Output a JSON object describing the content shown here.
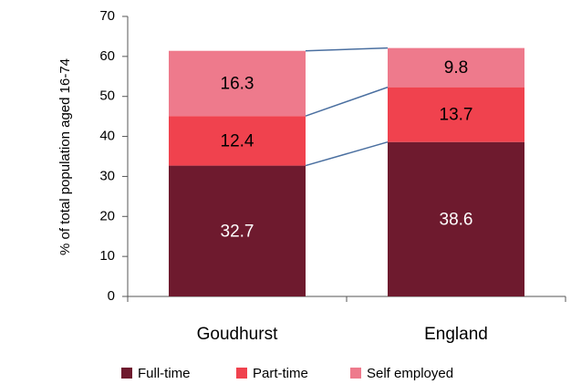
{
  "chart_data": {
    "type": "stacked_bar",
    "y_label": "% of total population aged  16-74",
    "categories": [
      "Goudhurst",
      "England"
    ],
    "series": [
      {
        "name": "Full-time",
        "color": "#6e1a2e",
        "values": [
          32.7,
          38.6
        ]
      },
      {
        "name": "Part-time",
        "color": "#f0424e",
        "values": [
          12.4,
          13.7
        ]
      },
      {
        "name": "Self employed",
        "color": "#ee7a8c",
        "values": [
          16.3,
          9.8
        ]
      }
    ],
    "connector_color": "#4a6fa0",
    "ylim": [
      0,
      70
    ],
    "yticks": [
      0,
      10,
      20,
      30,
      40,
      50,
      60,
      70
    ]
  }
}
